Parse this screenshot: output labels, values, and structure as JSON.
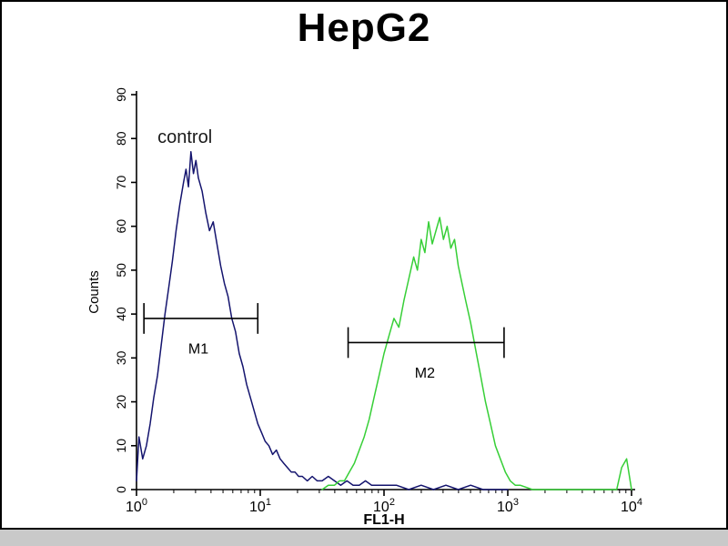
{
  "chart_data": {
    "type": "line",
    "subtype": "flow-cytometry-histogram",
    "title": "HepG2",
    "xlabel": "FL1-H",
    "ylabel": "Counts",
    "x_scale": "log10",
    "xlim_log": [
      0,
      4
    ],
    "ylim": [
      0,
      90
    ],
    "grid": false,
    "legend": "none",
    "x_ticks": [
      {
        "base": "10",
        "exp": "0"
      },
      {
        "base": "10",
        "exp": "1"
      },
      {
        "base": "10",
        "exp": "2"
      },
      {
        "base": "10",
        "exp": "3"
      },
      {
        "base": "10",
        "exp": "4"
      }
    ],
    "y_ticks": [
      {
        "value": 0,
        "label": "0"
      },
      {
        "value": 10,
        "label": "10"
      },
      {
        "value": 20,
        "label": "20"
      },
      {
        "value": 30,
        "label": "30"
      },
      {
        "value": 40,
        "label": "40"
      },
      {
        "value": 50,
        "label": "50"
      },
      {
        "value": 60,
        "label": "60"
      },
      {
        "value": 70,
        "label": "70"
      },
      {
        "value": 80,
        "label": "80"
      },
      {
        "value": 90,
        "label": "90"
      }
    ],
    "annotations": [
      {
        "text": "control",
        "log_x": 0.17,
        "y": 79,
        "font_size": 20,
        "color": "#1a1a1a"
      }
    ],
    "markers": [
      {
        "label": "M1",
        "y": 39,
        "x_start_log": 0.06,
        "x_end_log": 0.98,
        "cap_half": 3.5,
        "label_log_x": 0.5,
        "label_y": 31
      },
      {
        "label": "M2",
        "y": 33.5,
        "x_start_log": 1.71,
        "x_end_log": 2.97,
        "cap_half": 3.5,
        "label_log_x": 2.33,
        "label_y": 25.5
      }
    ],
    "series": [
      {
        "name": "control",
        "color": "#14146e",
        "points": [
          [
            0,
            2
          ],
          [
            0.02,
            12
          ],
          [
            0.05,
            7
          ],
          [
            0.08,
            10
          ],
          [
            0.11,
            15
          ],
          [
            0.14,
            21
          ],
          [
            0.17,
            26
          ],
          [
            0.2,
            33
          ],
          [
            0.23,
            40
          ],
          [
            0.26,
            46
          ],
          [
            0.29,
            52
          ],
          [
            0.32,
            59
          ],
          [
            0.35,
            65
          ],
          [
            0.38,
            70
          ],
          [
            0.4,
            73
          ],
          [
            0.42,
            69
          ],
          [
            0.44,
            77
          ],
          [
            0.46,
            72
          ],
          [
            0.48,
            75
          ],
          [
            0.5,
            71
          ],
          [
            0.53,
            68
          ],
          [
            0.56,
            63
          ],
          [
            0.59,
            59
          ],
          [
            0.62,
            61
          ],
          [
            0.65,
            56
          ],
          [
            0.68,
            51
          ],
          [
            0.71,
            47
          ],
          [
            0.74,
            44
          ],
          [
            0.77,
            39
          ],
          [
            0.8,
            36
          ],
          [
            0.83,
            31
          ],
          [
            0.86,
            28
          ],
          [
            0.89,
            24
          ],
          [
            0.92,
            21
          ],
          [
            0.95,
            18
          ],
          [
            0.98,
            15
          ],
          [
            1.01,
            13
          ],
          [
            1.04,
            11
          ],
          [
            1.07,
            10
          ],
          [
            1.1,
            8
          ],
          [
            1.13,
            9
          ],
          [
            1.16,
            7
          ],
          [
            1.19,
            6
          ],
          [
            1.22,
            5
          ],
          [
            1.25,
            4
          ],
          [
            1.28,
            4
          ],
          [
            1.31,
            3
          ],
          [
            1.34,
            3
          ],
          [
            1.38,
            2
          ],
          [
            1.42,
            3
          ],
          [
            1.46,
            2
          ],
          [
            1.5,
            2
          ],
          [
            1.55,
            3
          ],
          [
            1.6,
            2
          ],
          [
            1.65,
            1
          ],
          [
            1.7,
            2
          ],
          [
            1.75,
            1
          ],
          [
            1.8,
            1
          ],
          [
            1.85,
            2
          ],
          [
            1.9,
            1
          ],
          [
            1.95,
            1
          ],
          [
            2,
            1
          ],
          [
            2.1,
            1
          ],
          [
            2.2,
            0
          ],
          [
            2.3,
            1
          ],
          [
            2.4,
            0
          ],
          [
            2.5,
            1
          ],
          [
            2.6,
            0
          ],
          [
            2.7,
            1
          ],
          [
            2.8,
            0
          ],
          [
            2.9,
            0
          ],
          [
            3,
            0
          ]
        ]
      },
      {
        "name": "green-sample",
        "color": "#37cf37",
        "points": [
          [
            1.5,
            0
          ],
          [
            1.55,
            1
          ],
          [
            1.6,
            1
          ],
          [
            1.64,
            2
          ],
          [
            1.68,
            2
          ],
          [
            1.72,
            4
          ],
          [
            1.76,
            6
          ],
          [
            1.8,
            9
          ],
          [
            1.84,
            12
          ],
          [
            1.88,
            16
          ],
          [
            1.92,
            21
          ],
          [
            1.96,
            26
          ],
          [
            2,
            31
          ],
          [
            2.04,
            35
          ],
          [
            2.08,
            39
          ],
          [
            2.12,
            37
          ],
          [
            2.16,
            43
          ],
          [
            2.2,
            48
          ],
          [
            2.24,
            53
          ],
          [
            2.27,
            50
          ],
          [
            2.3,
            57
          ],
          [
            2.33,
            54
          ],
          [
            2.36,
            61
          ],
          [
            2.39,
            56
          ],
          [
            2.42,
            59
          ],
          [
            2.45,
            62
          ],
          [
            2.48,
            57
          ],
          [
            2.51,
            60
          ],
          [
            2.54,
            55
          ],
          [
            2.57,
            57
          ],
          [
            2.6,
            51
          ],
          [
            2.63,
            47
          ],
          [
            2.66,
            43
          ],
          [
            2.7,
            38
          ],
          [
            2.74,
            32
          ],
          [
            2.78,
            26
          ],
          [
            2.82,
            20
          ],
          [
            2.86,
            15
          ],
          [
            2.9,
            10
          ],
          [
            2.94,
            7
          ],
          [
            2.98,
            4
          ],
          [
            3.02,
            2
          ],
          [
            3.06,
            1
          ],
          [
            3.1,
            1
          ],
          [
            3.2,
            0
          ],
          [
            3.4,
            0
          ],
          [
            3.6,
            0
          ],
          [
            3.8,
            0
          ],
          [
            3.88,
            0
          ],
          [
            3.92,
            5
          ],
          [
            3.96,
            7
          ],
          [
            4,
            0
          ]
        ]
      }
    ]
  }
}
